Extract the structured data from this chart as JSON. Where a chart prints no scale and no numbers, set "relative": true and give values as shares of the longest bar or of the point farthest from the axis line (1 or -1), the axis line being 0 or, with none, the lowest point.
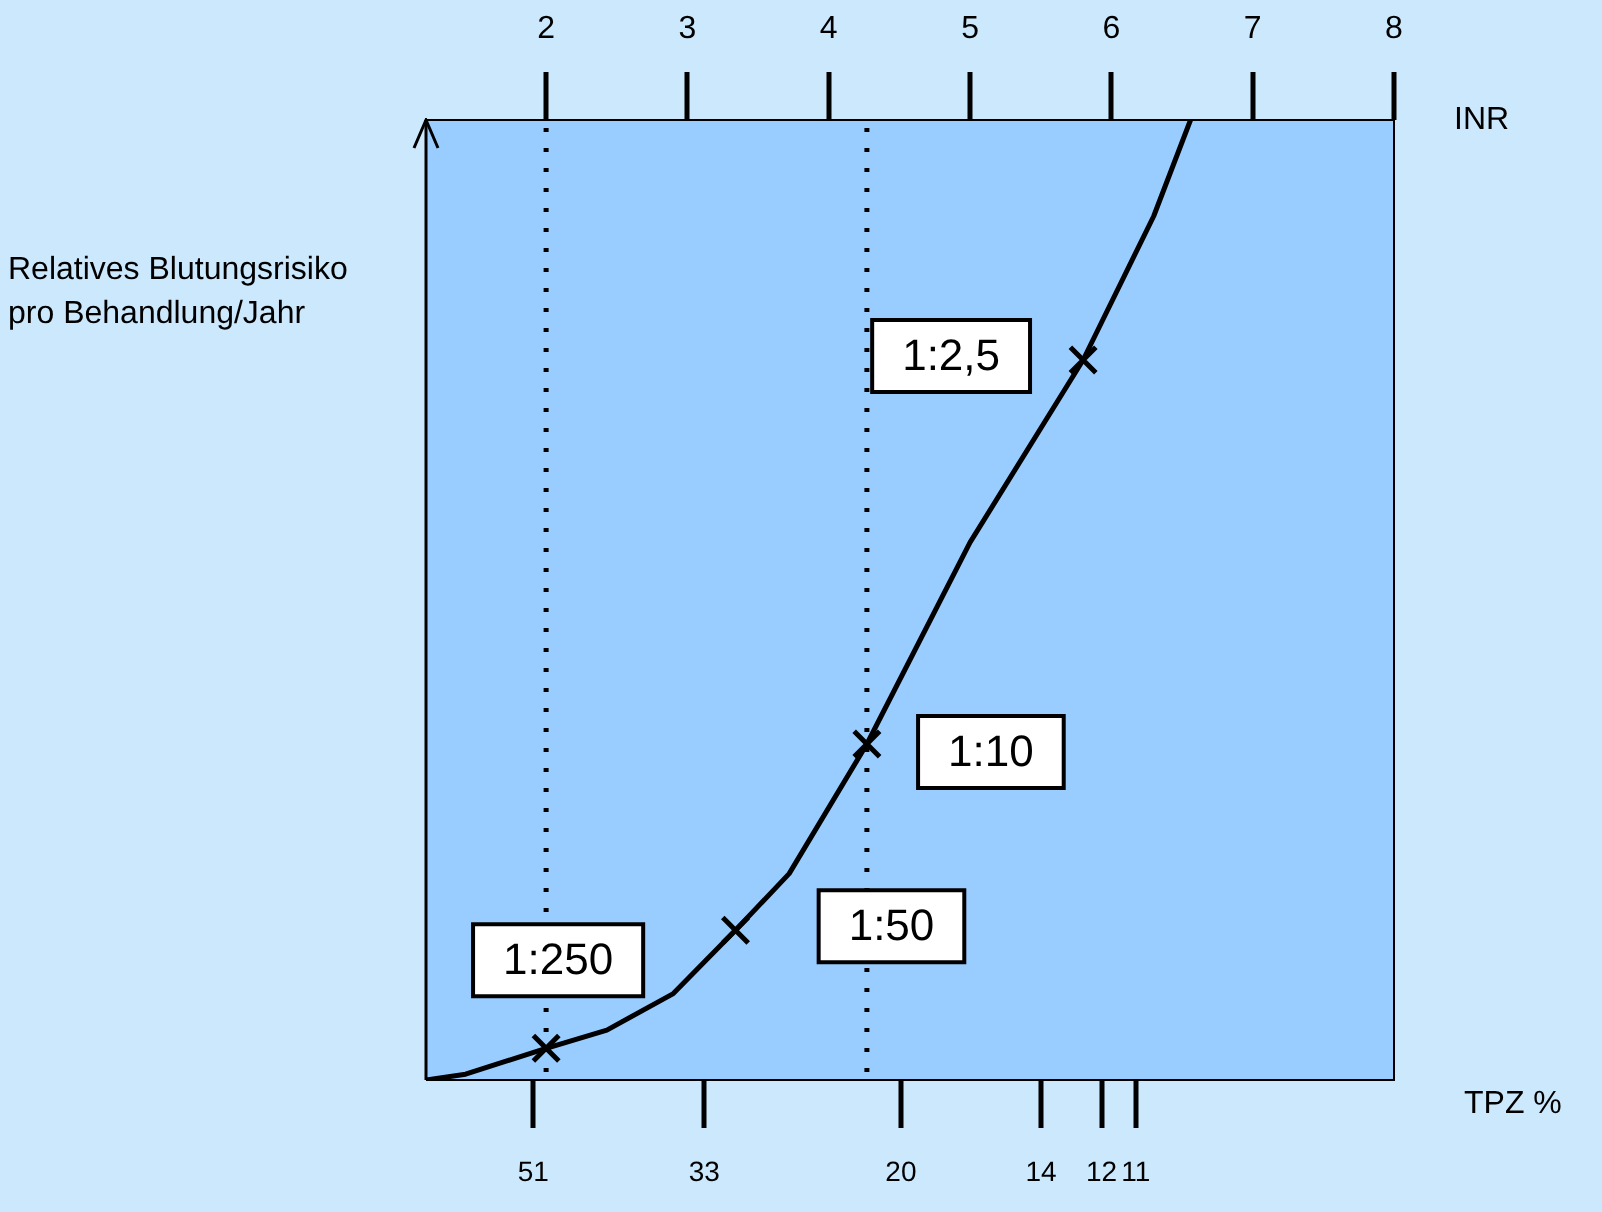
{
  "chart_data": {
    "type": "line",
    "relative": true,
    "log": "x2",
    "ylabel": "Relatives Blutungsrisiko pro Behandlung/Jahr",
    "xlabel": "INR",
    "x2label": "TPZ %",
    "xlim": [
      1.15,
      8
    ],
    "xticks": [
      2,
      3,
      4,
      5,
      6,
      7,
      8
    ],
    "x2lim": [
      67,
      5.7
    ],
    "x2ticks": [
      51,
      33,
      20,
      14,
      12,
      11
    ],
    "series": [
      {
        "color": "#000000",
        "marker": "none",
        "x": [
          1.15,
          1.43,
          2,
          2.43,
          2.9,
          3.34,
          3.72,
          4.27,
          5,
          5.8,
          6.3,
          6.56
        ],
        "values": [
          0,
          0.006,
          0.033,
          0.052,
          0.09,
          0.156,
          0.215,
          0.35,
          0.56,
          0.75,
          0.9,
          1.0
        ]
      },
      {
        "type": "scatter",
        "color": "#000000",
        "marker": "cross",
        "x": [
          2,
          3.34,
          4.27,
          5.8
        ],
        "values": [
          0.033,
          0.156,
          0.35,
          0.75
        ]
      }
    ],
    "annotations": [
      {
        "text": "1:250",
        "x": 2,
        "y": 0.033
      },
      {
        "text": "1:50",
        "x": 3.34,
        "y": 0.156
      },
      {
        "text": "1:10",
        "x": 4.27,
        "y": 0.35
      },
      {
        "text": "1:2,5",
        "x": 5.8,
        "y": 0.75
      }
    ],
    "ref_lines": [
      {
        "axis": "x",
        "value": 2,
        "line_style": "dotted"
      },
      {
        "axis": "x",
        "value": 4.27,
        "line_style": "dotted"
      }
    ]
  }
}
